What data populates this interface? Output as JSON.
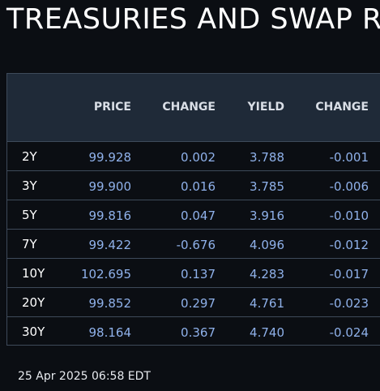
{
  "title": "TREASURIES AND SWAP RA",
  "table": {
    "headers": [
      "",
      "PRICE",
      "CHANGE",
      "YIELD",
      "CHANGE"
    ],
    "rows": [
      {
        "tenor": "2Y",
        "price": "99.928",
        "price_change": "0.002",
        "yield": "3.788",
        "yield_change": "-0.001"
      },
      {
        "tenor": "3Y",
        "price": "99.900",
        "price_change": "0.016",
        "yield": "3.785",
        "yield_change": "-0.006"
      },
      {
        "tenor": "5Y",
        "price": "99.816",
        "price_change": "0.047",
        "yield": "3.916",
        "yield_change": "-0.010"
      },
      {
        "tenor": "7Y",
        "price": "99.422",
        "price_change": "-0.676",
        "yield": "4.096",
        "yield_change": "-0.012"
      },
      {
        "tenor": "10Y",
        "price": "102.695",
        "price_change": "0.137",
        "yield": "4.283",
        "yield_change": "-0.017"
      },
      {
        "tenor": "20Y",
        "price": "99.852",
        "price_change": "0.297",
        "yield": "4.761",
        "yield_change": "-0.023"
      },
      {
        "tenor": "30Y",
        "price": "98.164",
        "price_change": "0.367",
        "yield": "4.740",
        "yield_change": "-0.024"
      }
    ]
  },
  "timestamp": "25 Apr 2025 06:58 EDT",
  "colors": {
    "background": "#0b0e13",
    "header_bg": "#1f2a38",
    "value_text": "#8fb1ea",
    "grid": "#3e4a5a"
  }
}
